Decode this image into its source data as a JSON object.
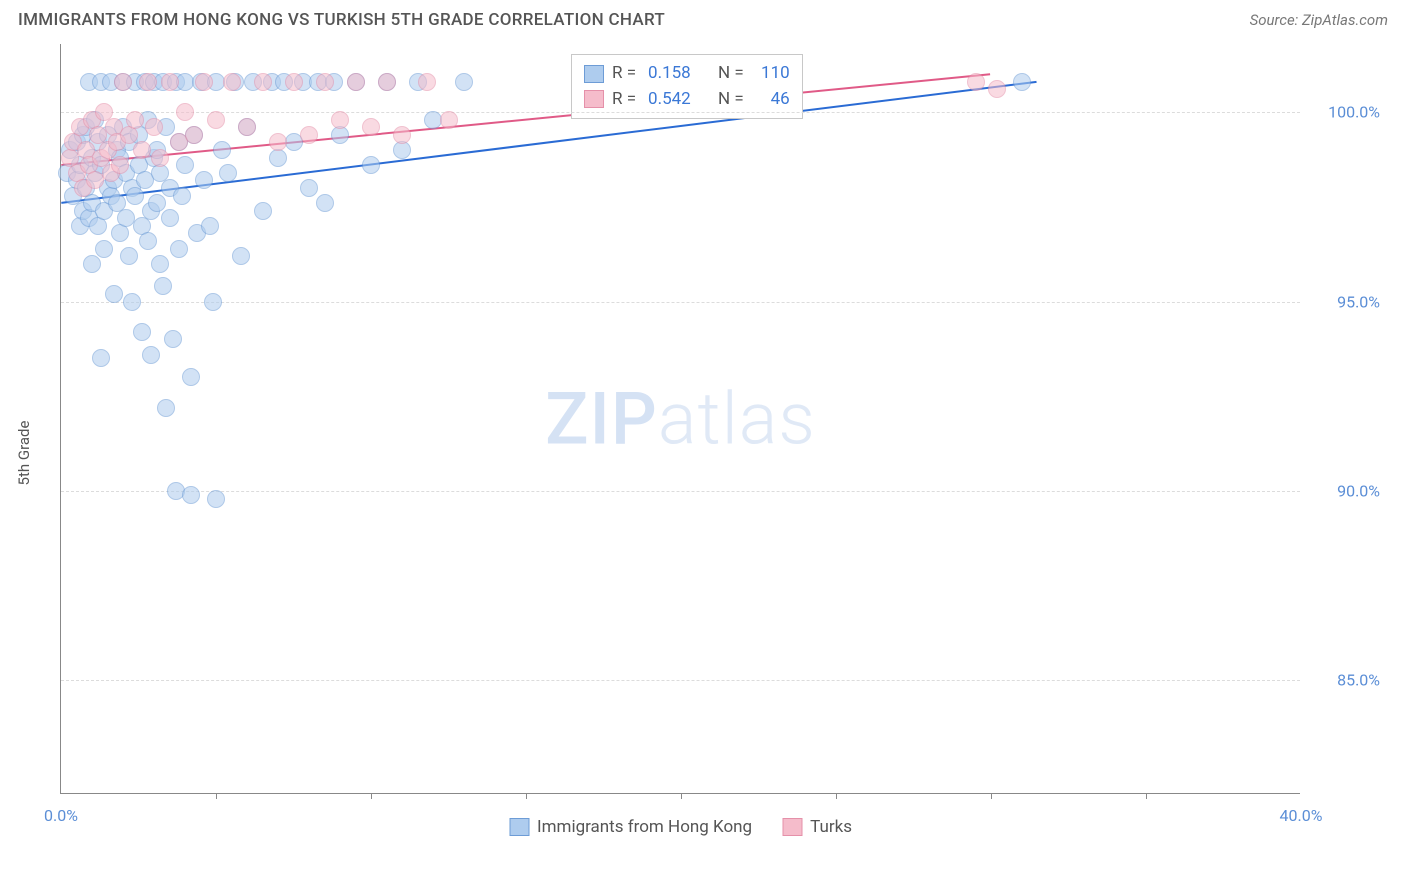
{
  "title": "IMMIGRANTS FROM HONG KONG VS TURKISH 5TH GRADE CORRELATION CHART",
  "source": "Source: ZipAtlas.com",
  "y_axis_label": "5th Grade",
  "watermark_bold": "ZIP",
  "watermark_light": "atlas",
  "chart": {
    "type": "scatter",
    "background_color": "#ffffff",
    "grid_color": "#dcdcdc",
    "axis_color": "#888888",
    "xlim": [
      0,
      40
    ],
    "ylim": [
      82,
      101.8
    ],
    "xtick_labels": [
      "0.0%",
      "40.0%"
    ],
    "xtick_positions": [
      0,
      40
    ],
    "xtick_minor": [
      5,
      10,
      15,
      20,
      25,
      30,
      35
    ],
    "ytick_labels": [
      "85.0%",
      "90.0%",
      "95.0%",
      "100.0%"
    ],
    "ytick_positions": [
      85,
      90,
      95,
      100
    ],
    "marker_radius": 9,
    "marker_stroke_width": 1.5,
    "trend_line_width": 2,
    "series": [
      {
        "name": "Immigrants from Hong Kong",
        "fill": "#aeccee",
        "stroke": "#6d9cd6",
        "fill_opacity": 0.55,
        "r_value": "0.158",
        "n_value": "110",
        "trend": {
          "x1": 0,
          "y1": 97.6,
          "x2": 31.5,
          "y2": 100.8,
          "color": "#2a6bd4"
        },
        "points": [
          [
            0.2,
            98.4
          ],
          [
            0.3,
            99.0
          ],
          [
            0.4,
            97.8
          ],
          [
            0.5,
            98.2
          ],
          [
            0.5,
            99.2
          ],
          [
            0.6,
            97.0
          ],
          [
            0.6,
            98.6
          ],
          [
            0.7,
            99.4
          ],
          [
            0.7,
            97.4
          ],
          [
            0.8,
            98.0
          ],
          [
            0.8,
            99.6
          ],
          [
            0.9,
            97.2
          ],
          [
            0.9,
            100.8
          ],
          [
            1.0,
            98.8
          ],
          [
            1.0,
            97.6
          ],
          [
            1.0,
            96.0
          ],
          [
            1.1,
            99.8
          ],
          [
            1.1,
            98.4
          ],
          [
            1.2,
            97.0
          ],
          [
            1.2,
            99.2
          ],
          [
            1.3,
            100.8
          ],
          [
            1.3,
            98.6
          ],
          [
            1.4,
            97.4
          ],
          [
            1.4,
            96.4
          ],
          [
            1.5,
            99.4
          ],
          [
            1.5,
            98.0
          ],
          [
            1.6,
            97.8
          ],
          [
            1.6,
            100.8
          ],
          [
            1.7,
            98.2
          ],
          [
            1.7,
            95.2
          ],
          [
            1.8,
            99.0
          ],
          [
            1.8,
            97.6
          ],
          [
            1.9,
            98.8
          ],
          [
            1.9,
            96.8
          ],
          [
            2.0,
            100.8
          ],
          [
            2.0,
            99.6
          ],
          [
            2.1,
            98.4
          ],
          [
            2.1,
            97.2
          ],
          [
            2.2,
            96.2
          ],
          [
            2.2,
            99.2
          ],
          [
            2.3,
            98.0
          ],
          [
            2.3,
            95.0
          ],
          [
            2.4,
            100.8
          ],
          [
            2.4,
            97.8
          ],
          [
            2.5,
            99.4
          ],
          [
            2.5,
            98.6
          ],
          [
            2.6,
            97.0
          ],
          [
            2.6,
            94.2
          ],
          [
            2.7,
            100.8
          ],
          [
            2.7,
            98.2
          ],
          [
            2.8,
            99.8
          ],
          [
            2.8,
            96.6
          ],
          [
            2.9,
            97.4
          ],
          [
            2.9,
            93.6
          ],
          [
            3.0,
            98.8
          ],
          [
            3.0,
            100.8
          ],
          [
            3.1,
            99.0
          ],
          [
            3.1,
            97.6
          ],
          [
            3.2,
            96.0
          ],
          [
            3.2,
            98.4
          ],
          [
            3.3,
            95.4
          ],
          [
            3.3,
            100.8
          ],
          [
            3.4,
            99.6
          ],
          [
            3.4,
            92.2
          ],
          [
            3.5,
            97.2
          ],
          [
            3.5,
            98.0
          ],
          [
            3.6,
            94.0
          ],
          [
            3.7,
            100.8
          ],
          [
            3.7,
            90.0
          ],
          [
            3.8,
            96.4
          ],
          [
            3.8,
            99.2
          ],
          [
            3.9,
            97.8
          ],
          [
            4.0,
            98.6
          ],
          [
            4.0,
            100.8
          ],
          [
            4.2,
            93.0
          ],
          [
            4.3,
            99.4
          ],
          [
            4.4,
            96.8
          ],
          [
            4.5,
            100.8
          ],
          [
            4.6,
            98.2
          ],
          [
            4.8,
            97.0
          ],
          [
            4.9,
            95.0
          ],
          [
            5.0,
            100.8
          ],
          [
            5.0,
            89.8
          ],
          [
            5.2,
            99.0
          ],
          [
            5.4,
            98.4
          ],
          [
            5.6,
            100.8
          ],
          [
            5.8,
            96.2
          ],
          [
            6.0,
            99.6
          ],
          [
            6.2,
            100.8
          ],
          [
            6.5,
            97.4
          ],
          [
            6.8,
            100.8
          ],
          [
            7.0,
            98.8
          ],
          [
            7.2,
            100.8
          ],
          [
            7.5,
            99.2
          ],
          [
            7.8,
            100.8
          ],
          [
            8.0,
            98.0
          ],
          [
            8.3,
            100.8
          ],
          [
            8.5,
            97.6
          ],
          [
            8.8,
            100.8
          ],
          [
            9.0,
            99.4
          ],
          [
            9.5,
            100.8
          ],
          [
            10.0,
            98.6
          ],
          [
            10.5,
            100.8
          ],
          [
            11.0,
            99.0
          ],
          [
            11.5,
            100.8
          ],
          [
            12.0,
            99.8
          ],
          [
            13.0,
            100.8
          ],
          [
            31.0,
            100.8
          ],
          [
            1.3,
            93.5
          ],
          [
            4.2,
            89.9
          ]
        ]
      },
      {
        "name": "Turks",
        "fill": "#f5bccb",
        "stroke": "#e590a9",
        "fill_opacity": 0.55,
        "r_value": "0.542",
        "n_value": "46",
        "trend": {
          "x1": 0,
          "y1": 98.6,
          "x2": 30.0,
          "y2": 101.0,
          "color": "#e05a87"
        },
        "points": [
          [
            0.3,
            98.8
          ],
          [
            0.4,
            99.2
          ],
          [
            0.5,
            98.4
          ],
          [
            0.6,
            99.6
          ],
          [
            0.7,
            98.0
          ],
          [
            0.8,
            99.0
          ],
          [
            0.9,
            98.6
          ],
          [
            1.0,
            99.8
          ],
          [
            1.1,
            98.2
          ],
          [
            1.2,
            99.4
          ],
          [
            1.3,
            98.8
          ],
          [
            1.4,
            100.0
          ],
          [
            1.5,
            99.0
          ],
          [
            1.6,
            98.4
          ],
          [
            1.7,
            99.6
          ],
          [
            1.8,
            99.2
          ],
          [
            1.9,
            98.6
          ],
          [
            2.0,
            100.8
          ],
          [
            2.2,
            99.4
          ],
          [
            2.4,
            99.8
          ],
          [
            2.6,
            99.0
          ],
          [
            2.8,
            100.8
          ],
          [
            3.0,
            99.6
          ],
          [
            3.2,
            98.8
          ],
          [
            3.5,
            100.8
          ],
          [
            3.8,
            99.2
          ],
          [
            4.0,
            100.0
          ],
          [
            4.3,
            99.4
          ],
          [
            4.6,
            100.8
          ],
          [
            5.0,
            99.8
          ],
          [
            5.5,
            100.8
          ],
          [
            6.0,
            99.6
          ],
          [
            6.5,
            100.8
          ],
          [
            7.0,
            99.2
          ],
          [
            7.5,
            100.8
          ],
          [
            8.0,
            99.4
          ],
          [
            8.5,
            100.8
          ],
          [
            9.0,
            99.8
          ],
          [
            9.5,
            100.8
          ],
          [
            10.0,
            99.6
          ],
          [
            10.5,
            100.8
          ],
          [
            11.0,
            99.4
          ],
          [
            11.8,
            100.8
          ],
          [
            12.5,
            99.8
          ],
          [
            29.5,
            100.8
          ],
          [
            30.2,
            100.6
          ]
        ]
      }
    ]
  },
  "legend": {
    "bottom_items": [
      "Immigrants from Hong Kong",
      "Turks"
    ]
  }
}
